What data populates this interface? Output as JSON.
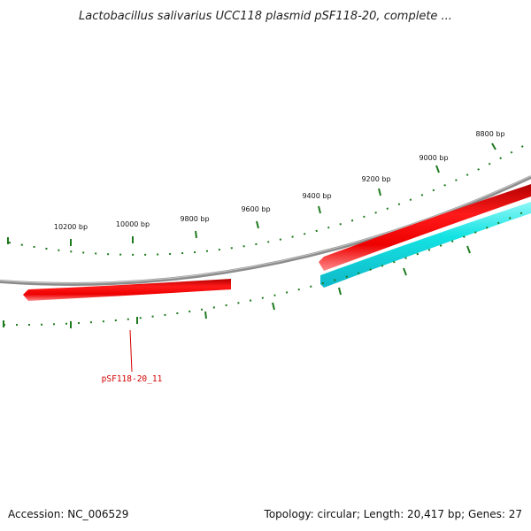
{
  "title": "Lactobacillus salivarius UCC118 plasmid pSF118-20, complete ...",
  "footer": {
    "accession": "Accession: NC_006529",
    "summary": "Topology: circular; Length: 20,417 bp; Genes: 27"
  },
  "map": {
    "colors": {
      "backbone": "#8c8c8c",
      "forward_gene": "#ee0000",
      "reverse_gene": "#14e3e3",
      "ticks": "#1e7a1e",
      "label_line": "#d40000"
    },
    "scale_labels": [
      "10200 bp",
      "10000 bp",
      "9800 bp",
      "9600 bp",
      "9400 bp",
      "9200 bp",
      "9000 bp",
      "8800 bp"
    ],
    "gene_labels": [
      {
        "text": "pSF118-20_11",
        "strand": "forward"
      }
    ]
  }
}
